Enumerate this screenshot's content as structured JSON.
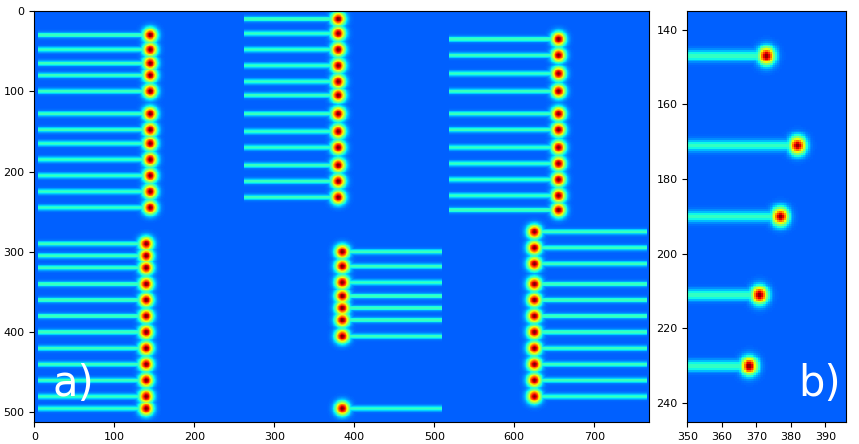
{
  "chart_data": [
    {
      "type": "image",
      "label": "a)",
      "xlim": [
        0,
        768
      ],
      "ylim": [
        512,
        0
      ],
      "xticks": [
        0,
        100,
        200,
        300,
        400,
        500,
        600,
        700
      ],
      "yticks": [
        0,
        100,
        200,
        300,
        400,
        500
      ],
      "modules": [
        {
          "spot_x": 145,
          "streak_end_x": 5,
          "spot_y": [
            30,
            48,
            65,
            80,
            100,
            128,
            148,
            165,
            185,
            205,
            225,
            245
          ]
        },
        {
          "spot_x": 380,
          "streak_end_x": 262,
          "spot_y": [
            10,
            28,
            48,
            68,
            88,
            105,
            128,
            150,
            170,
            192,
            212,
            232
          ]
        },
        {
          "spot_x": 655,
          "streak_end_x": 518,
          "spot_y": [
            35,
            55,
            78,
            100,
            128,
            148,
            170,
            190,
            210,
            230,
            248
          ]
        },
        {
          "spot_x": 140,
          "streak_end_x": 5,
          "spot_y": [
            290,
            305,
            320,
            340,
            360,
            380,
            400,
            420,
            440,
            460,
            480,
            495
          ]
        },
        {
          "spot_x": 385,
          "streak_end_x": 510,
          "spot_y": [
            300,
            318,
            338,
            355,
            370,
            385,
            405,
            495
          ]
        },
        {
          "spot_x": 625,
          "streak_end_x": 766,
          "spot_y": [
            275,
            295,
            315,
            340,
            360,
            380,
            400,
            420,
            440,
            460,
            480
          ]
        }
      ]
    },
    {
      "type": "image",
      "label": "b)",
      "xlim": [
        350,
        396
      ],
      "ylim": [
        245,
        135
      ],
      "xticks": [
        350,
        360,
        370,
        380,
        390
      ],
      "yticks": [
        140,
        160,
        180,
        200,
        220,
        240
      ],
      "modules": [
        {
          "spot_x": 373,
          "streak_end_x": 350,
          "spot_y": [
            147
          ]
        },
        {
          "spot_x": 382,
          "streak_end_x": 350,
          "spot_y": [
            171
          ]
        },
        {
          "spot_x": 377,
          "streak_end_x": 350,
          "spot_y": [
            190
          ]
        },
        {
          "spot_x": 371,
          "streak_end_x": 350,
          "spot_y": [
            211
          ]
        },
        {
          "spot_x": 368,
          "streak_end_x": 350,
          "spot_y": [
            230
          ]
        }
      ]
    }
  ]
}
